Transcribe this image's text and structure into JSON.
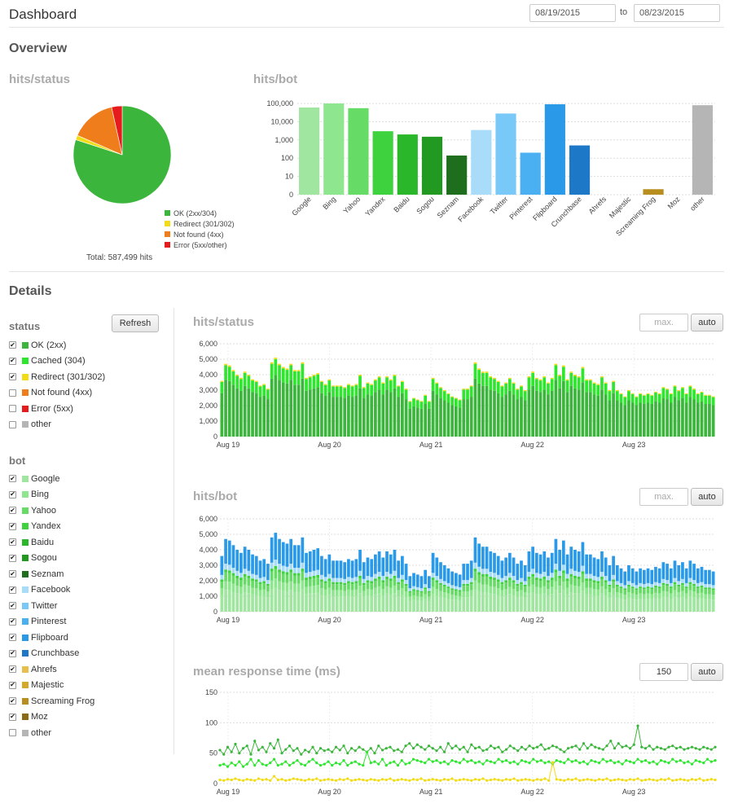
{
  "header": {
    "title": "Dashboard",
    "date_from": "08/19/2015",
    "to_label": "to",
    "date_to": "08/23/2015"
  },
  "overview": {
    "title": "Overview",
    "status_title": "hits/status",
    "bot_title": "hits/bot",
    "total_label": "Total: 587,499 hits"
  },
  "details": {
    "title": "Details",
    "refresh_label": "Refresh",
    "status_head": "status",
    "bot_head": "bot",
    "status_filters": [
      {
        "label": "OK (2xx)",
        "checked": true,
        "color": "#3cb53c"
      },
      {
        "label": "Cached (304)",
        "checked": true,
        "color": "#2ee62e"
      },
      {
        "label": "Redirect (301/302)",
        "checked": true,
        "color": "#f2dc17"
      },
      {
        "label": "Not found (4xx)",
        "checked": false,
        "color": "#f07d1c"
      },
      {
        "label": "Error (5xx)",
        "checked": false,
        "color": "#e61c1c"
      },
      {
        "label": "other",
        "checked": false,
        "color": "#b5b5b5"
      }
    ],
    "bot_filters": [
      {
        "label": "Google",
        "checked": true,
        "color": "#a0e6a0"
      },
      {
        "label": "Bing",
        "checked": true,
        "color": "#8ee68e"
      },
      {
        "label": "Yahoo",
        "checked": true,
        "color": "#66dc66"
      },
      {
        "label": "Yandex",
        "checked": true,
        "color": "#3ed23e"
      },
      {
        "label": "Baidu",
        "checked": true,
        "color": "#2ab82a"
      },
      {
        "label": "Sogou",
        "checked": true,
        "color": "#229a22"
      },
      {
        "label": "Seznam",
        "checked": true,
        "color": "#1e6e1e"
      },
      {
        "label": "Facebook",
        "checked": true,
        "color": "#a8dcf8"
      },
      {
        "label": "Twitter",
        "checked": true,
        "color": "#78c8f8"
      },
      {
        "label": "Pinterest",
        "checked": true,
        "color": "#4ab0f2"
      },
      {
        "label": "Flipboard",
        "checked": true,
        "color": "#2a9ae8"
      },
      {
        "label": "Crunchbase",
        "checked": true,
        "color": "#1e78c8"
      },
      {
        "label": "Ahrefs",
        "checked": true,
        "color": "#e6c04a"
      },
      {
        "label": "Majestic",
        "checked": true,
        "color": "#d4a82a"
      },
      {
        "label": "Screaming Frog",
        "checked": true,
        "color": "#b88e1e"
      },
      {
        "label": "Moz",
        "checked": true,
        "color": "#8c6a14"
      },
      {
        "label": "other",
        "checked": false,
        "color": "#b5b5b5"
      }
    ],
    "charts": {
      "status": {
        "title": "hits/status",
        "max_placeholder": "max.",
        "auto_label": "auto"
      },
      "bot": {
        "title": "hits/bot",
        "max_placeholder": "max.",
        "auto_label": "auto"
      },
      "response": {
        "title": "mean response time (ms)",
        "max_value": "150",
        "auto_label": "auto"
      }
    }
  },
  "colors": {
    "ok": "#3cb53c",
    "cached": "#2ee62e",
    "redirect": "#f2dc17",
    "notfound": "#f07d1c",
    "error": "#e61c1c",
    "other": "#b5b5b5"
  },
  "chart_data": [
    {
      "type": "pie",
      "title": "hits/status",
      "labels": [
        "OK (2xx/304)",
        "Redirect (301/302)",
        "Not found (4xx)",
        "Error (5xx/other)"
      ],
      "values": [
        80,
        1.5,
        15,
        3.5
      ],
      "colors": [
        "#3cb53c",
        "#f2dc17",
        "#f07d1c",
        "#e61c1c"
      ]
    },
    {
      "type": "bar",
      "title": "hits/bot",
      "yscale": "log",
      "yticks": [
        "0",
        "10",
        "100",
        "1,000",
        "10,000",
        "100,000"
      ],
      "categories": [
        "Google",
        "Bing",
        "Yahoo",
        "Yandex",
        "Baidu",
        "Sogou",
        "Seznam",
        "Facebook",
        "Twitter",
        "Pinterest",
        "Flipboard",
        "Crunchbase",
        "Ahrefs",
        "Majestic",
        "Screaming Frog",
        "Moz",
        "other"
      ],
      "values": [
        60000,
        100000,
        55000,
        3000,
        2000,
        1500,
        140,
        3500,
        28000,
        200,
        90000,
        500,
        0,
        0,
        2,
        0,
        80000
      ],
      "colors": [
        "#a0e6a0",
        "#8ee68e",
        "#66dc66",
        "#3ed23e",
        "#2ab82a",
        "#229a22",
        "#1e6e1e",
        "#a8dcf8",
        "#78c8f8",
        "#4ab0f2",
        "#2a9ae8",
        "#1e78c8",
        "#e6c04a",
        "#d4a82a",
        "#b88e1e",
        "#8c6a14",
        "#b5b5b5"
      ]
    },
    {
      "type": "bar",
      "title": "hits/status",
      "stacked": true,
      "xticks": [
        "Aug 19",
        "Aug 20",
        "Aug 21",
        "Aug 22",
        "Aug 23"
      ],
      "yticks": [
        "0",
        "1,000",
        "2,000",
        "3,000",
        "4,000",
        "5,000",
        "6,000"
      ],
      "ylim": [
        0,
        6000
      ],
      "series_colors": [
        "#3cb53c",
        "#2ee62e",
        "#f2dc17"
      ],
      "totals": [
        3600,
        4700,
        4600,
        4300,
        4000,
        3800,
        4200,
        4000,
        3700,
        3600,
        3300,
        3400,
        3100,
        4800,
        5100,
        4700,
        4500,
        4400,
        4700,
        4300,
        4300,
        4800,
        3800,
        3900,
        4000,
        4100,
        3600,
        3400,
        3700,
        3300,
        3300,
        3300,
        3200,
        3400,
        3300,
        3400,
        4000,
        3200,
        3500,
        3400,
        3700,
        3900,
        3500,
        3900,
        3700,
        4000,
        3300,
        3600,
        3100,
        2300,
        2500,
        2400,
        2300,
        2700,
        2300,
        3800,
        3500,
        3200,
        3000,
        2800,
        2600,
        2500,
        2400,
        3100,
        3100,
        3300,
        4800,
        4400,
        4200,
        4200,
        3900,
        3800,
        3600,
        3300,
        3500,
        3800,
        3500,
        3100,
        3300,
        3000,
        3900,
        4200,
        3800,
        3700,
        3900,
        3500,
        3800,
        4700,
        4000,
        4600,
        3700,
        4200,
        4000,
        3900,
        4500,
        3700,
        3700,
        3500,
        3400,
        3900,
        3500,
        3000,
        3600,
        3000,
        2800,
        2600,
        3000,
        2800,
        2600,
        2800,
        2700,
        2800,
        2700,
        2900,
        2800,
        3200,
        3100,
        2800,
        3300,
        3000,
        3200,
        2800,
        3300,
        3100,
        2800,
        2900,
        2700,
        2700,
        2600
      ],
      "shares": [
        0.78,
        0.2,
        0.02
      ]
    },
    {
      "type": "bar",
      "title": "hits/bot",
      "stacked": true,
      "xticks": [
        "Aug 19",
        "Aug 20",
        "Aug 21",
        "Aug 22",
        "Aug 23"
      ],
      "yticks": [
        "0",
        "1,000",
        "2,000",
        "3,000",
        "4,000",
        "5,000",
        "6,000"
      ],
      "ylim": [
        0,
        6000
      ],
      "series_colors": [
        "#a0e6a0",
        "#8ee68e",
        "#66dc66",
        "#3ed23e",
        "#a8dcf8",
        "#2a9ae8"
      ],
      "totals": [
        3600,
        4700,
        4600,
        4300,
        4000,
        3800,
        4200,
        4000,
        3700,
        3600,
        3300,
        3400,
        3100,
        4800,
        5100,
        4700,
        4500,
        4400,
        4700,
        4300,
        4300,
        4800,
        3800,
        3900,
        4000,
        4100,
        3600,
        3400,
        3700,
        3300,
        3300,
        3300,
        3200,
        3400,
        3300,
        3400,
        4000,
        3200,
        3500,
        3400,
        3700,
        3900,
        3500,
        3900,
        3700,
        4000,
        3300,
        3600,
        3100,
        2300,
        2500,
        2400,
        2300,
        2700,
        2300,
        3800,
        3500,
        3200,
        3000,
        2800,
        2600,
        2500,
        2400,
        3100,
        3100,
        3300,
        4800,
        4400,
        4200,
        4200,
        3900,
        3800,
        3600,
        3300,
        3500,
        3800,
        3500,
        3100,
        3300,
        3000,
        3900,
        4200,
        3800,
        3700,
        3900,
        3500,
        3800,
        4700,
        4000,
        4600,
        3700,
        4200,
        4000,
        3900,
        4500,
        3700,
        3700,
        3500,
        3400,
        3900,
        3500,
        3000,
        3600,
        3000,
        2800,
        2600,
        3000,
        2800,
        2600,
        2800,
        2700,
        2800,
        2700,
        2900,
        2800,
        3200,
        3100,
        2800,
        3300,
        3000,
        3200,
        2800,
        3300,
        3100,
        2800,
        2900,
        2700,
        2700,
        2600
      ],
      "shares": [
        0.3,
        0.12,
        0.12,
        0.04,
        0.08,
        0.34
      ]
    },
    {
      "type": "line",
      "title": "mean response time (ms)",
      "xticks": [
        "Aug 19",
        "Aug 20",
        "Aug 21",
        "Aug 22",
        "Aug 23"
      ],
      "yticks": [
        "0",
        "50",
        "100",
        "150"
      ],
      "ylim": [
        0,
        150
      ],
      "series": [
        {
          "color": "#3cb53c",
          "values": [
            55,
            48,
            60,
            52,
            65,
            50,
            58,
            62,
            48,
            70,
            55,
            60,
            52,
            66,
            58,
            72,
            50,
            56,
            62,
            54,
            58,
            48,
            55,
            52,
            60,
            50,
            58,
            54,
            56,
            52,
            60,
            55,
            62,
            50,
            58,
            54,
            60,
            56,
            52,
            58,
            50,
            62,
            55,
            58,
            60,
            54,
            56,
            52,
            62,
            66,
            58,
            64,
            60,
            56,
            62,
            58,
            54,
            60,
            52,
            66,
            58,
            62,
            56,
            60,
            52,
            64,
            58,
            60,
            54,
            56,
            62,
            58,
            60,
            52,
            56,
            62,
            58,
            54,
            60,
            56,
            62,
            58,
            60,
            64,
            56,
            58,
            62,
            60,
            56,
            52,
            58,
            60,
            62,
            56,
            66,
            58,
            64,
            60,
            58,
            56,
            62,
            70,
            58,
            66,
            60,
            62,
            58,
            64,
            95,
            60,
            58,
            62,
            56,
            60,
            58,
            56,
            60,
            62,
            58,
            60,
            56,
            58,
            60,
            58,
            56,
            60,
            58,
            56,
            60
          ]
        },
        {
          "color": "#2ee62e",
          "values": [
            30,
            32,
            28,
            34,
            30,
            36,
            28,
            32,
            40,
            30,
            38,
            32,
            30,
            34,
            40,
            30,
            32,
            36,
            30,
            34,
            38,
            32,
            30,
            36,
            40,
            34,
            30,
            32,
            36,
            30,
            34,
            32,
            38,
            30,
            34,
            36,
            32,
            30,
            52,
            34,
            36,
            32,
            40,
            30,
            34,
            36,
            30,
            38,
            32,
            34,
            40,
            38,
            36,
            34,
            40,
            36,
            38,
            34,
            36,
            32,
            38,
            36,
            34,
            40,
            36,
            38,
            34,
            36,
            32,
            38,
            36,
            34,
            40,
            36,
            38,
            34,
            36,
            32,
            38,
            36,
            34,
            40,
            36,
            38,
            34,
            36,
            32,
            38,
            36,
            34,
            40,
            36,
            38,
            34,
            36,
            32,
            38,
            36,
            34,
            40,
            36,
            38,
            34,
            36,
            32,
            38,
            36,
            34,
            40,
            36,
            38,
            34,
            36,
            32,
            38,
            36,
            34,
            40,
            36,
            38,
            34,
            36,
            32,
            38,
            36,
            34,
            40,
            36,
            38
          ]
        },
        {
          "color": "#f2dc17",
          "values": [
            6,
            5,
            7,
            6,
            8,
            6,
            5,
            7,
            6,
            5,
            8,
            6,
            7,
            5,
            12,
            6,
            7,
            5,
            6,
            8,
            7,
            6,
            5,
            7,
            6,
            8,
            5,
            6,
            7,
            6,
            5,
            7,
            6,
            8,
            5,
            6,
            7,
            6,
            5,
            7,
            6,
            5,
            7,
            6,
            8,
            5,
            6,
            7,
            6,
            5,
            7,
            6,
            8,
            5,
            6,
            7,
            6,
            5,
            7,
            6,
            8,
            5,
            6,
            7,
            6,
            5,
            7,
            6,
            8,
            5,
            6,
            7,
            6,
            5,
            7,
            6,
            8,
            5,
            6,
            7,
            6,
            5,
            7,
            6,
            8,
            5,
            35,
            7,
            6,
            5,
            7,
            6,
            8,
            5,
            6,
            7,
            6,
            5,
            7,
            6,
            8,
            5,
            6,
            7,
            6,
            5,
            7,
            6,
            8,
            5,
            6,
            7,
            6,
            5,
            7,
            6,
            8,
            5,
            6,
            7,
            6,
            5,
            7,
            6,
            8,
            5,
            6,
            7,
            6
          ]
        }
      ]
    }
  ]
}
